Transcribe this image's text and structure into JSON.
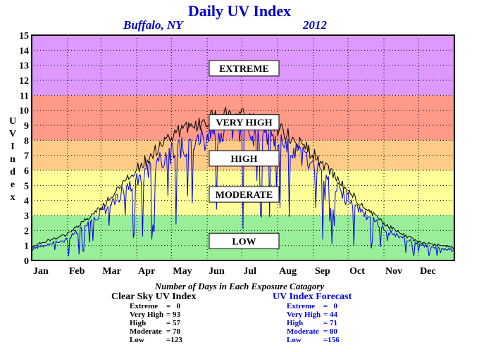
{
  "header": {
    "title": "Daily UV Index",
    "location": "Buffalo, NY",
    "year": "2012"
  },
  "chart_data": {
    "type": "line",
    "title": "Daily UV Index",
    "ylabel": "UV Index",
    "ylim": [
      0,
      15
    ],
    "xlim": [
      0,
      366
    ],
    "grid": true,
    "y_ticks": [
      "0",
      "1",
      "2",
      "3",
      "4",
      "5",
      "6",
      "7",
      "8",
      "9",
      "10",
      "11",
      "12",
      "13",
      "14",
      "15"
    ],
    "x_ticks": [
      {
        "label": "Jan",
        "day": 0
      },
      {
        "label": "Feb",
        "day": 31
      },
      {
        "label": "Mar",
        "day": 60
      },
      {
        "label": "Apr",
        "day": 91
      },
      {
        "label": "May",
        "day": 121
      },
      {
        "label": "Jun",
        "day": 152
      },
      {
        "label": "Jul",
        "day": 182
      },
      {
        "label": "Aug",
        "day": 213
      },
      {
        "label": "Sep",
        "day": 244
      },
      {
        "label": "Oct",
        "day": 274
      },
      {
        "label": "Nov",
        "day": 305
      },
      {
        "label": "Dec",
        "day": 335
      }
    ],
    "bands": [
      {
        "label": "LOW",
        "from": 0,
        "to": 3,
        "color": "#99ee99",
        "label_y": 1.3
      },
      {
        "label": "MODERATE",
        "from": 3,
        "to": 6,
        "color": "#ffff99",
        "label_y": 4.4
      },
      {
        "label": "HIGH",
        "from": 6,
        "to": 8,
        "color": "#ffcc88",
        "label_y": 6.8
      },
      {
        "label": "VERY HIGH",
        "from": 8,
        "to": 11,
        "color": "#ff9988",
        "label_y": 9.2
      },
      {
        "label": "EXTREME",
        "from": 11,
        "to": 15,
        "color": "#dd99ff",
        "label_y": 12.8
      }
    ],
    "series": [
      {
        "name": "Clear Sky UV Index",
        "color": "#000000",
        "values": []
      },
      {
        "name": "UV Index Forecast",
        "color": "#0000ee",
        "values": []
      }
    ],
    "clear_sky_envelope": [
      [
        0,
        1.0
      ],
      [
        31,
        1.8
      ],
      [
        60,
        3.7
      ],
      [
        91,
        6.4
      ],
      [
        121,
        8.6
      ],
      [
        152,
        9.8
      ],
      [
        172,
        10.1
      ],
      [
        182,
        10.0
      ],
      [
        213,
        9.2
      ],
      [
        244,
        7.4
      ],
      [
        274,
        4.8
      ],
      [
        305,
        2.5
      ],
      [
        335,
        1.3
      ],
      [
        366,
        0.9
      ]
    ],
    "forecast_envelope": [
      [
        0,
        0.8
      ],
      [
        31,
        1.5
      ],
      [
        60,
        3.3
      ],
      [
        91,
        5.7
      ],
      [
        121,
        7.6
      ],
      [
        152,
        8.6
      ],
      [
        172,
        9.2
      ],
      [
        182,
        9.2
      ],
      [
        213,
        8.3
      ],
      [
        244,
        6.8
      ],
      [
        274,
        4.2
      ],
      [
        305,
        2.2
      ],
      [
        335,
        1.1
      ],
      [
        366,
        0.7
      ]
    ]
  },
  "caption": "Number of Days in Each Exposure Catagory",
  "summary_clear": {
    "header": "Clear Sky UV Index",
    "rows": [
      {
        "k": "Extreme",
        "v": "=   0"
      },
      {
        "k": "Very High",
        "v": "= 93"
      },
      {
        "k": "High",
        "v": "= 57"
      },
      {
        "k": "Moderate",
        "v": "= 78"
      },
      {
        "k": "Low",
        "v": "=123"
      }
    ]
  },
  "summary_forecast": {
    "header": "UV Index Forecast",
    "rows": [
      {
        "k": "Extreme",
        "v": "=   0"
      },
      {
        "k": "Very High",
        "v": "= 44"
      },
      {
        "k": "High",
        "v": "= 71"
      },
      {
        "k": "Moderate",
        "v": "= 80"
      },
      {
        "k": "Low",
        "v": "=156"
      }
    ]
  }
}
